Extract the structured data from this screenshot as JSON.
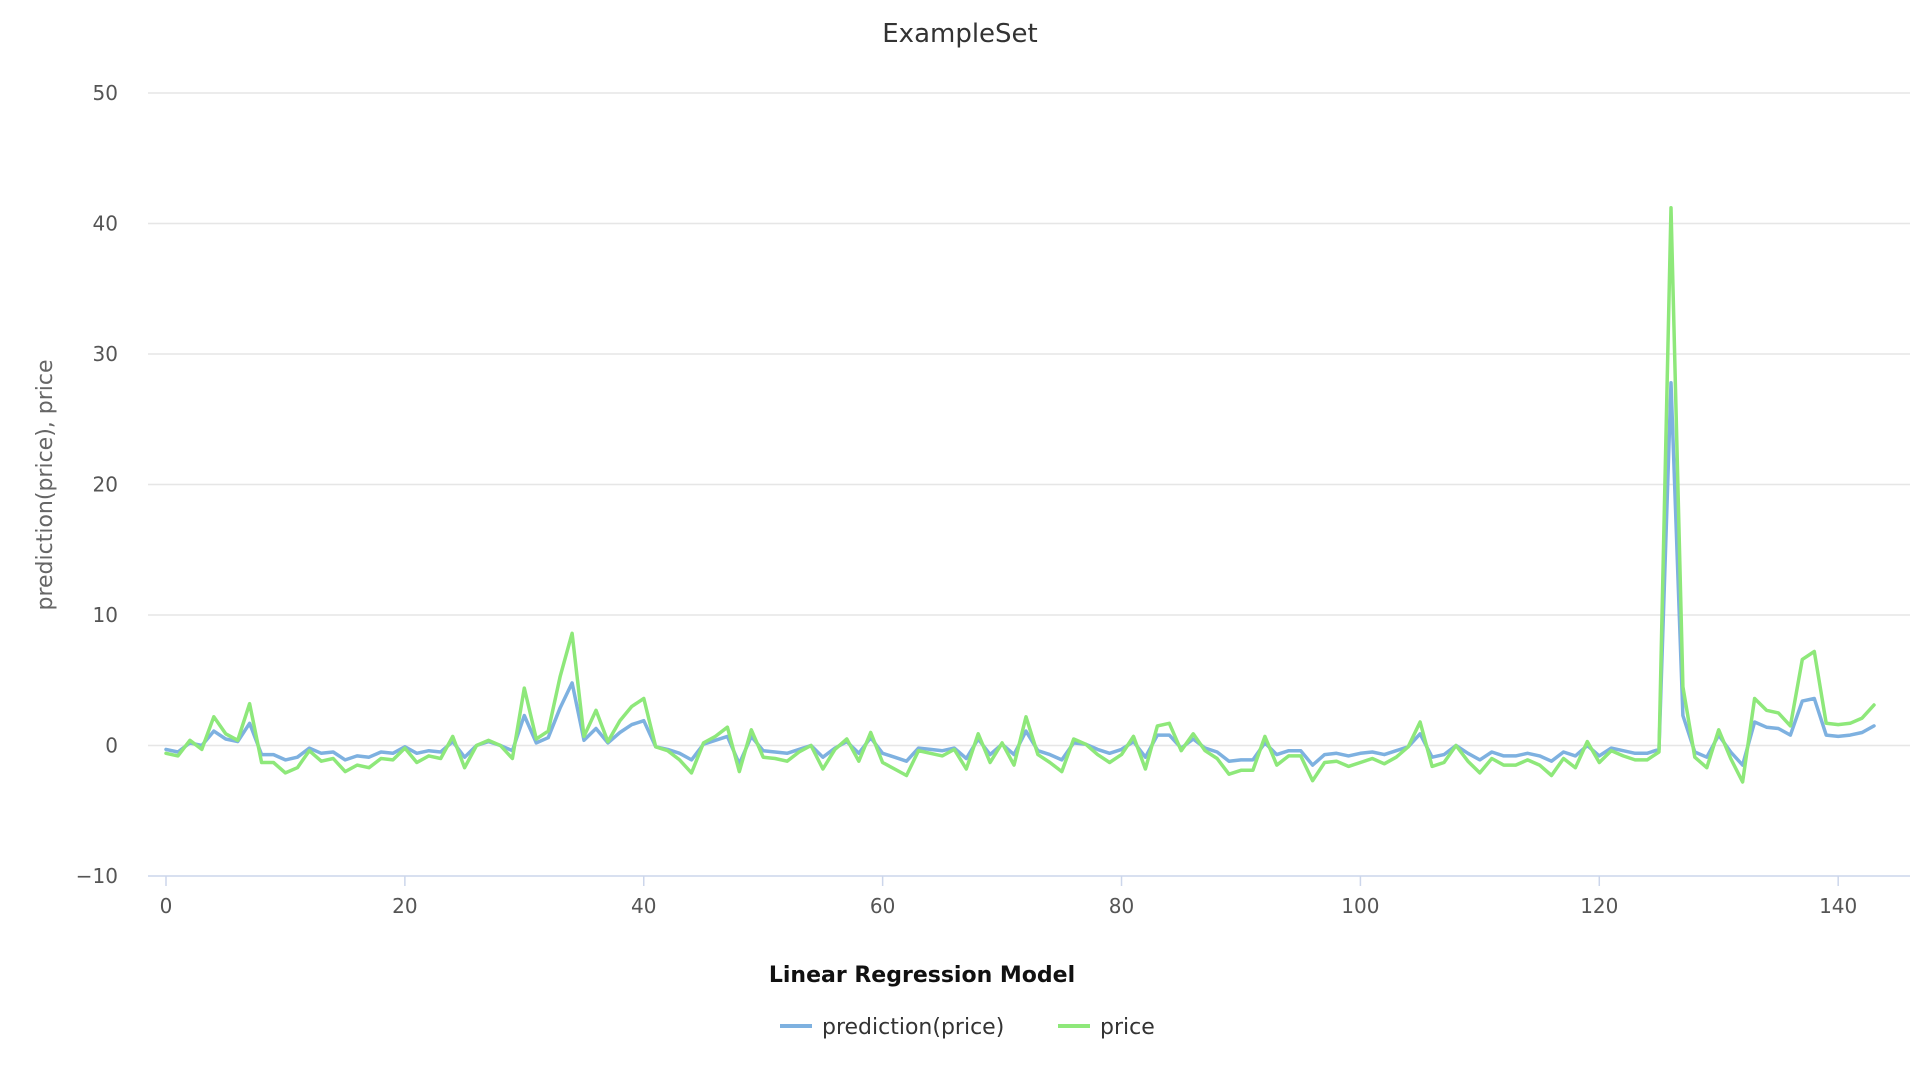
{
  "chart_data": {
    "type": "line",
    "title": "ExampleSet",
    "xlabel": "",
    "ylabel": "prediction(price), price",
    "xlim": [
      0,
      143
    ],
    "ylim": [
      -10,
      50
    ],
    "x_ticks": [
      "0",
      "20",
      "40",
      "60",
      "80",
      "100",
      "120",
      "140"
    ],
    "y_ticks": [
      "50",
      "40",
      "30",
      "20",
      "10",
      "0",
      "−10"
    ],
    "grid": true,
    "legend_title": "Linear Regression Model",
    "legend_position": "bottom-center",
    "series": [
      {
        "name": "prediction(price)",
        "color": "#7eb1e0",
        "values": [
          -0.3,
          -0.5,
          0.2,
          0,
          1.1,
          0.5,
          0.3,
          1.7,
          -0.7,
          -0.7,
          -1.1,
          -0.9,
          -0.2,
          -0.6,
          -0.5,
          -1.1,
          -0.8,
          -0.9,
          -0.5,
          -0.6,
          -0.1,
          -0.6,
          -0.4,
          -0.5,
          0.3,
          -0.9,
          0,
          0.3,
          0,
          -0.4,
          2.3,
          0.2,
          0.6,
          2.9,
          4.8,
          0.4,
          1.3,
          0.2,
          1,
          1.6,
          1.9,
          -0.1,
          -0.3,
          -0.6,
          -1.1,
          0.1,
          0.4,
          0.7,
          -1.4,
          0.7,
          -0.4,
          -0.5,
          -0.6,
          -0.3,
          0,
          -0.9,
          -0.2,
          0.3,
          -0.6,
          0.6,
          -0.6,
          -0.9,
          -1.2,
          -0.2,
          -0.3,
          -0.4,
          -0.2,
          -1,
          0.5,
          -0.7,
          0.1,
          -0.7,
          1.1,
          -0.4,
          -0.7,
          -1.1,
          0.2,
          0.1,
          -0.3,
          -0.6,
          -0.3,
          0.3,
          -0.9,
          0.8,
          0.8,
          -0.2,
          0.5,
          -0.2,
          -0.5,
          -1.2,
          -1.1,
          -1.1,
          0.2,
          -0.7,
          -0.4,
          -0.4,
          -1.5,
          -0.7,
          -0.6,
          -0.8,
          -0.6,
          -0.5,
          -0.7,
          -0.4,
          -0.1,
          0.9,
          -0.9,
          -0.7,
          0,
          -0.6,
          -1.1,
          -0.5,
          -0.8,
          -0.8,
          -0.6,
          -0.8,
          -1.2,
          -0.5,
          -0.8,
          0,
          -0.8,
          -0.2,
          -0.4,
          -0.6,
          -0.6,
          -0.3,
          27.8,
          2.3,
          -0.5,
          -0.9,
          0.8,
          -0.5,
          -1.5,
          1.8,
          1.4,
          1.3,
          0.8,
          3.4,
          3.6,
          0.8,
          0.7,
          0.8,
          1,
          1.5
        ]
      },
      {
        "name": "price",
        "color": "#8ee87a",
        "values": [
          -0.6,
          -0.8,
          0.4,
          -0.3,
          2.2,
          0.9,
          0.4,
          3.2,
          -1.3,
          -1.3,
          -2.1,
          -1.7,
          -0.4,
          -1.2,
          -1,
          -2,
          -1.5,
          -1.7,
          -1,
          -1.1,
          -0.2,
          -1.3,
          -0.8,
          -1,
          0.7,
          -1.7,
          0,
          0.4,
          0,
          -1,
          4.4,
          0.5,
          1.1,
          5.3,
          8.6,
          0.7,
          2.7,
          0.3,
          1.9,
          3,
          3.6,
          -0.1,
          -0.4,
          -1.1,
          -2.1,
          0.2,
          0.7,
          1.4,
          -2,
          1.2,
          -0.9,
          -1,
          -1.2,
          -0.5,
          0,
          -1.8,
          -0.3,
          0.5,
          -1.2,
          1,
          -1.3,
          -1.8,
          -2.3,
          -0.4,
          -0.6,
          -0.8,
          -0.3,
          -1.8,
          0.9,
          -1.3,
          0.2,
          -1.5,
          2.2,
          -0.7,
          -1.3,
          -2,
          0.5,
          0.1,
          -0.7,
          -1.3,
          -0.7,
          0.7,
          -1.8,
          1.5,
          1.7,
          -0.4,
          0.9,
          -0.4,
          -1,
          -2.2,
          -1.9,
          -1.9,
          0.7,
          -1.5,
          -0.8,
          -0.8,
          -2.7,
          -1.3,
          -1.2,
          -1.6,
          -1.3,
          -1,
          -1.4,
          -0.9,
          -0.1,
          1.8,
          -1.6,
          -1.3,
          0,
          -1.2,
          -2.1,
          -1,
          -1.5,
          -1.5,
          -1.1,
          -1.5,
          -2.3,
          -1,
          -1.7,
          0.3,
          -1.3,
          -0.4,
          -0.8,
          -1.1,
          -1.1,
          -0.5,
          41.2,
          4.5,
          -0.9,
          -1.7,
          1.2,
          -1,
          -2.8,
          3.6,
          2.7,
          2.5,
          1.5,
          6.6,
          7.2,
          1.7,
          1.6,
          1.7,
          2.1,
          3.1
        ]
      }
    ]
  }
}
